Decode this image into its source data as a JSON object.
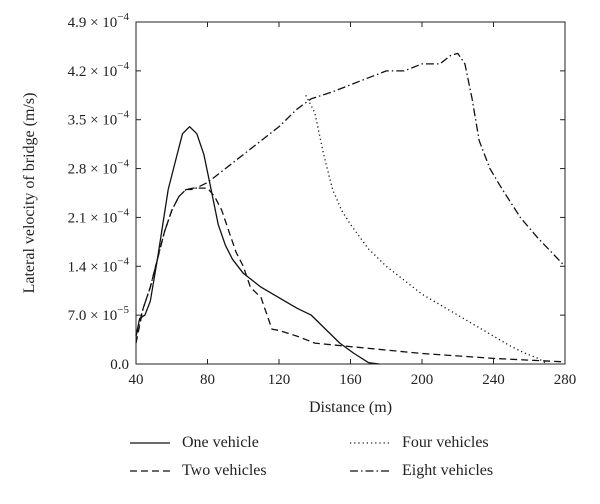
{
  "chart_data": {
    "type": "line",
    "xlabel": "Distance (m)",
    "ylabel": "Lateral velocity of bridge (m/s)",
    "xlim": [
      40,
      280
    ],
    "ylim": [
      0,
      0.00049
    ],
    "x_ticks": [
      40,
      80,
      120,
      160,
      200,
      240,
      280
    ],
    "x_tick_labels": [
      "40",
      "80",
      "120",
      "160",
      "200",
      "240",
      "280"
    ],
    "y_ticks": [
      0,
      7e-05,
      0.00014,
      0.00021,
      0.00028,
      0.00035,
      0.00042,
      0.00049
    ],
    "y_tick_labels": [
      {
        "mant": "0.0",
        "exp": ""
      },
      {
        "mant": "7.0 × 10",
        "exp": "−5"
      },
      {
        "mant": "1.4 × 10",
        "exp": "−4"
      },
      {
        "mant": "2.1 × 10",
        "exp": "−4"
      },
      {
        "mant": "2.8 × 10",
        "exp": "−4"
      },
      {
        "mant": "3.5 × 10",
        "exp": "−4"
      },
      {
        "mant": "4.2 × 10",
        "exp": "−4"
      },
      {
        "mant": "4.9 × 10",
        "exp": "−4"
      }
    ],
    "grid": false,
    "legend_position": "bottom",
    "series": [
      {
        "name": "One vehicle",
        "style": "solid",
        "points": [
          [
            40,
            4e-05
          ],
          [
            42,
            6.5e-05
          ],
          [
            45,
            7e-05
          ],
          [
            48,
            9e-05
          ],
          [
            52,
            0.00015
          ],
          [
            55,
            0.0002
          ],
          [
            58,
            0.00025
          ],
          [
            62,
            0.00029
          ],
          [
            66,
            0.00033
          ],
          [
            70,
            0.00034
          ],
          [
            74,
            0.00033
          ],
          [
            78,
            0.0003
          ],
          [
            82,
            0.00025
          ],
          [
            86,
            0.0002
          ],
          [
            90,
            0.00017
          ],
          [
            94,
            0.00015
          ],
          [
            100,
            0.00013
          ],
          [
            110,
            0.00011
          ],
          [
            120,
            9.5e-05
          ],
          [
            130,
            8e-05
          ],
          [
            138,
            7e-05
          ],
          [
            146,
            5e-05
          ],
          [
            154,
            3e-05
          ],
          [
            162,
            1.5e-05
          ],
          [
            170,
            2e-06
          ],
          [
            176,
            0
          ]
        ]
      },
      {
        "name": "Two vehicles",
        "style": "dashed",
        "points": [
          [
            40,
            3e-05
          ],
          [
            44,
            8e-05
          ],
          [
            48,
            0.00011
          ],
          [
            52,
            0.00015
          ],
          [
            56,
            0.00019
          ],
          [
            60,
            0.00022
          ],
          [
            64,
            0.00024
          ],
          [
            68,
            0.00025
          ],
          [
            72,
            0.000252
          ],
          [
            76,
            0.000252
          ],
          [
            80,
            0.000252
          ],
          [
            84,
            0.00024
          ],
          [
            88,
            0.00022
          ],
          [
            92,
            0.00019
          ],
          [
            96,
            0.00016
          ],
          [
            100,
            0.00014
          ],
          [
            104,
            0.00011
          ],
          [
            110,
            9.5e-05
          ],
          [
            116,
            5e-05
          ],
          [
            120,
            4.8e-05
          ],
          [
            130,
            4e-05
          ],
          [
            140,
            3e-05
          ],
          [
            160,
            2.5e-05
          ],
          [
            200,
            1.5e-05
          ],
          [
            240,
            8e-06
          ],
          [
            280,
            3e-06
          ]
        ]
      },
      {
        "name": "Four vehicles",
        "style": "dotted",
        "points": [
          [
            135,
            0.000385
          ],
          [
            140,
            0.00036
          ],
          [
            145,
            0.0003
          ],
          [
            150,
            0.00025
          ],
          [
            155,
            0.00022
          ],
          [
            160,
            0.0002
          ],
          [
            170,
            0.000165
          ],
          [
            180,
            0.00014
          ],
          [
            190,
            0.00012
          ],
          [
            200,
            0.0001
          ],
          [
            210,
            8.5e-05
          ],
          [
            220,
            7e-05
          ],
          [
            230,
            5.5e-05
          ],
          [
            240,
            4e-05
          ],
          [
            250,
            2.5e-05
          ],
          [
            258,
            1.5e-05
          ],
          [
            265,
            8e-06
          ],
          [
            270,
            0
          ]
        ]
      },
      {
        "name": "Eight vehicles",
        "style": "dashdot",
        "points": [
          [
            40,
            4e-05
          ],
          [
            44,
            8e-05
          ],
          [
            48,
            0.00011
          ],
          [
            52,
            0.00015
          ],
          [
            56,
            0.00019
          ],
          [
            60,
            0.00022
          ],
          [
            64,
            0.00024
          ],
          [
            68,
            0.00025
          ],
          [
            72,
            0.00025
          ],
          [
            80,
            0.00026
          ],
          [
            90,
            0.00028
          ],
          [
            100,
            0.0003
          ],
          [
            110,
            0.00032
          ],
          [
            120,
            0.00034
          ],
          [
            130,
            0.000365
          ],
          [
            138,
            0.00038
          ],
          [
            150,
            0.00039
          ],
          [
            160,
            0.0004
          ],
          [
            170,
            0.00041
          ],
          [
            180,
            0.00042
          ],
          [
            190,
            0.00042
          ],
          [
            200,
            0.00043
          ],
          [
            210,
            0.00043
          ],
          [
            216,
            0.000442
          ],
          [
            220,
            0.000445
          ],
          [
            224,
            0.00043
          ],
          [
            228,
            0.00038
          ],
          [
            232,
            0.00032
          ],
          [
            238,
            0.00028
          ],
          [
            245,
            0.00025
          ],
          [
            255,
            0.00021
          ],
          [
            265,
            0.00018
          ],
          [
            280,
            0.00014
          ]
        ]
      }
    ]
  }
}
